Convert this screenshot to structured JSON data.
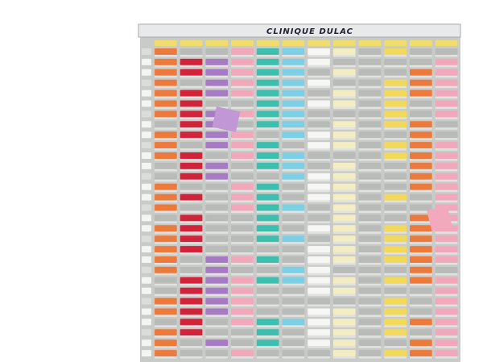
{
  "header": {
    "title": "CLINIQUE DULAC"
  }
}
